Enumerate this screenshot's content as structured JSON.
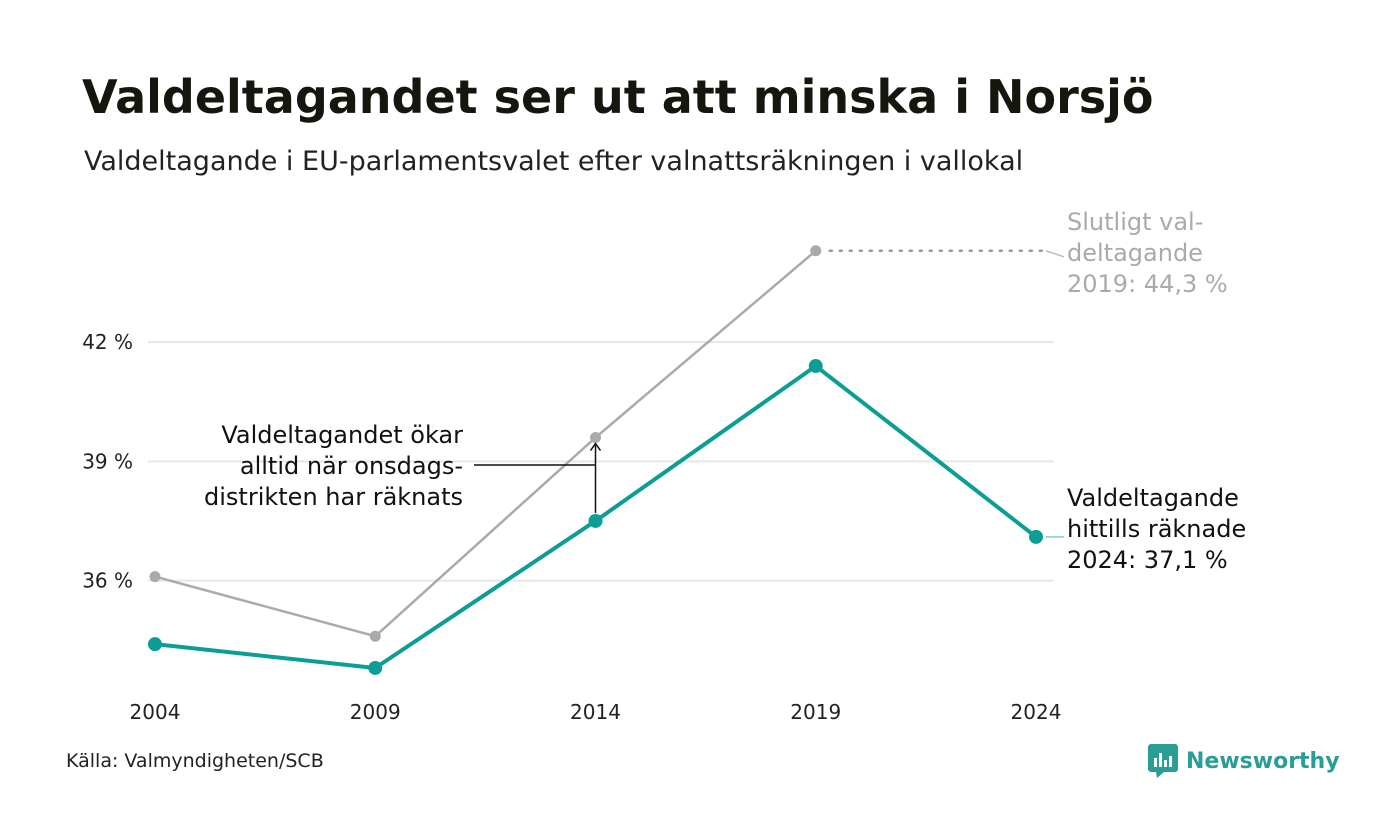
{
  "header": {
    "title": "Valdeltagandet ser ut att minska i Norsjö",
    "subtitle": "Valdeltagande i EU-parlamentsvalet efter valnattsräkningen i vallokal"
  },
  "footer": {
    "source": "Källa: Valmyndigheten/SCB",
    "brand": "Newsworthy"
  },
  "colors": {
    "final": "#aaaaaa",
    "counted": "#0c9e94",
    "grid": "#e6e6e6",
    "brand": "#2a9d94"
  },
  "chart_data": {
    "type": "line",
    "x": [
      2004,
      2009,
      2014,
      2019,
      2024
    ],
    "y_ticks": [
      36,
      39,
      42
    ],
    "y_tick_format": "{v} %",
    "ylim": [
      33.85,
      45.1
    ],
    "grid": "horizontal",
    "series": [
      {
        "key": "final",
        "values": [
          36.1,
          34.6,
          39.6,
          44.3,
          null
        ]
      },
      {
        "key": "counted",
        "values": [
          34.4,
          33.8,
          37.5,
          41.4,
          37.1
        ]
      }
    ],
    "annotations": {
      "final_label": [
        "Slutligt val-",
        "deltagande",
        "2019: 44,3 %"
      ],
      "counted_label": [
        "Valdeltagande",
        "hittills räknade",
        "2024: 37,1 %"
      ],
      "note": [
        "Valdeltagandet ökar",
        "alltid när onsdags-",
        "distrikten har räknats"
      ]
    }
  }
}
